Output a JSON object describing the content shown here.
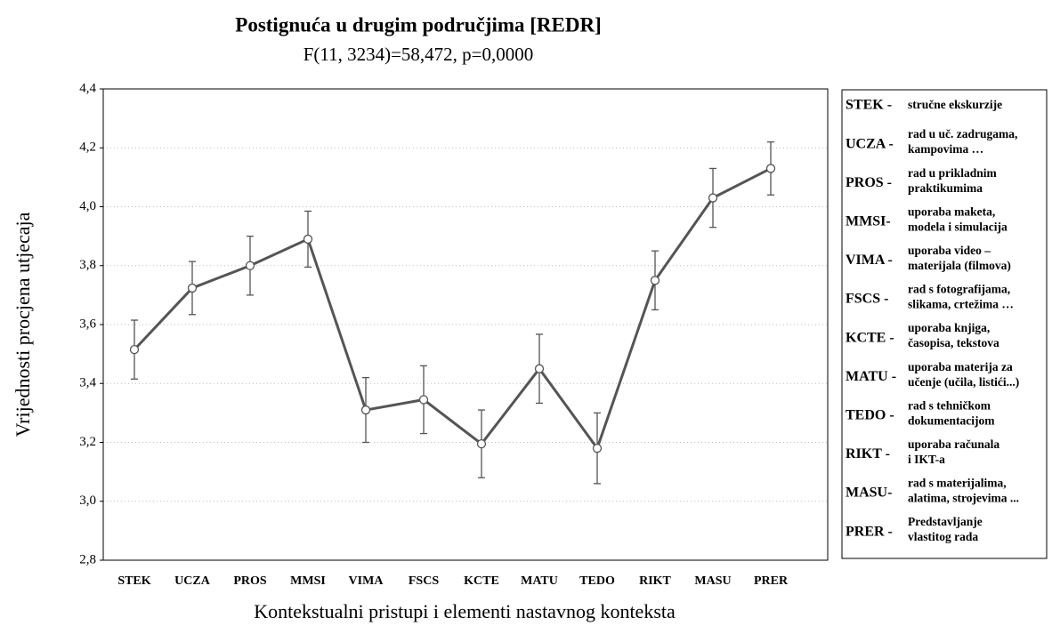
{
  "chart_data": {
    "type": "line",
    "title": "Postignuća u drugim područjima [REDR]",
    "subtitle": "F(11, 3234)=58,472, p=0,0000",
    "x_label": "Kontekstualni pristupi i elementi nastavnog konteksta",
    "y_label": "Vrijednosti procjena utjecaja",
    "categories": [
      "STEK",
      "UCZA",
      "PROS",
      "MMSI",
      "VIMA",
      "FSCS",
      "KCTE",
      "MATU",
      "TEDO",
      "RIKT",
      "MASU",
      "PRER"
    ],
    "series": [
      {
        "name": "REDR",
        "color": "#555555",
        "values": [
          3.515,
          3.724,
          3.8,
          3.89,
          3.31,
          3.345,
          3.195,
          3.45,
          3.18,
          3.75,
          4.03,
          4.13
        ],
        "errors": [
          0.1,
          0.09,
          0.1,
          0.095,
          0.11,
          0.115,
          0.115,
          0.117,
          0.12,
          0.1,
          0.1,
          0.09
        ]
      }
    ],
    "ylim": [
      2.8,
      4.4
    ],
    "yticks": [
      {
        "value": 2.8,
        "label": "2,8"
      },
      {
        "value": 3.0,
        "label": "3,0"
      },
      {
        "value": 3.2,
        "label": "3,2"
      },
      {
        "value": 3.4,
        "label": "3,4"
      },
      {
        "value": 3.6,
        "label": "3,6"
      },
      {
        "value": 3.8,
        "label": "3,8"
      },
      {
        "value": 4.0,
        "label": "4,0"
      },
      {
        "value": 4.2,
        "label": "4,2"
      },
      {
        "value": 4.4,
        "label": "4,4"
      }
    ],
    "grid": true,
    "legend_entries": [
      {
        "code": "STEK -",
        "lines": [
          "stručne ekskurzije"
        ]
      },
      {
        "code": "UCZA -",
        "lines": [
          "rad u uč. zadrugama,",
          "kampovima …"
        ]
      },
      {
        "code": "PROS -",
        "lines": [
          "rad u prikladnim",
          "praktikumima"
        ]
      },
      {
        "code": "MMSI-",
        "lines": [
          "uporaba maketa,",
          "modela i simulacija"
        ]
      },
      {
        "code": "VIMA -",
        "lines": [
          "uporaba video –",
          "materijala (filmova)"
        ]
      },
      {
        "code": "FSCS -",
        "lines": [
          "rad s fotografijama,",
          "slikama, crtežima …"
        ]
      },
      {
        "code": "KCTE -",
        "lines": [
          "uporaba knjiga,",
          "časopisa, tekstova"
        ]
      },
      {
        "code": "MATU -",
        "lines": [
          "uporaba materija za",
          "učenje (učila, listići...)"
        ]
      },
      {
        "code": "TEDO -",
        "lines": [
          "rad s tehničkom",
          "dokumentacijom"
        ]
      },
      {
        "code": "RIKT -",
        "lines": [
          "uporaba računala",
          "i IKT-a"
        ]
      },
      {
        "code": "MASU-",
        "lines": [
          "rad s materijalima,",
          "alatima, strojevima ..."
        ]
      },
      {
        "code": "PRER -",
        "lines": [
          "Predstavljanje",
          "vlastitog rada"
        ]
      }
    ]
  }
}
